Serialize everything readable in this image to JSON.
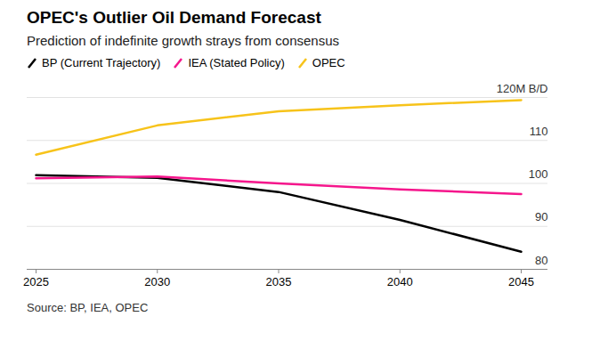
{
  "chart_data": {
    "type": "line",
    "title": "OPEC's Outlier Oil Demand Forecast",
    "subtitle": "Prediction of indefinite growth strays from consensus",
    "source": "Source: BP, IEA, OPEC",
    "x": [
      2025,
      2030,
      2035,
      2040,
      2045
    ],
    "series": [
      {
        "name": "BP (Current Trajectory)",
        "color": "#000000",
        "values": [
          101.9,
          101.3,
          98.0,
          91.5,
          84.1
        ]
      },
      {
        "name": "IEA (Stated Policy)",
        "color": "#f5168c",
        "values": [
          101.2,
          101.6,
          100.0,
          98.6,
          97.5
        ]
      },
      {
        "name": "OPEC",
        "color": "#f7c31a",
        "values": [
          106.7,
          113.5,
          116.8,
          118.2,
          119.4
        ]
      }
    ],
    "xlim": [
      2025,
      2045
    ],
    "xticks": [
      2025,
      2030,
      2035,
      2040,
      2045
    ],
    "ylim": [
      80,
      120
    ],
    "yticks": [
      80,
      90,
      100,
      110,
      {
        "value": 120,
        "label": "120M B/D"
      }
    ],
    "grid": true,
    "legend": "top-left"
  }
}
